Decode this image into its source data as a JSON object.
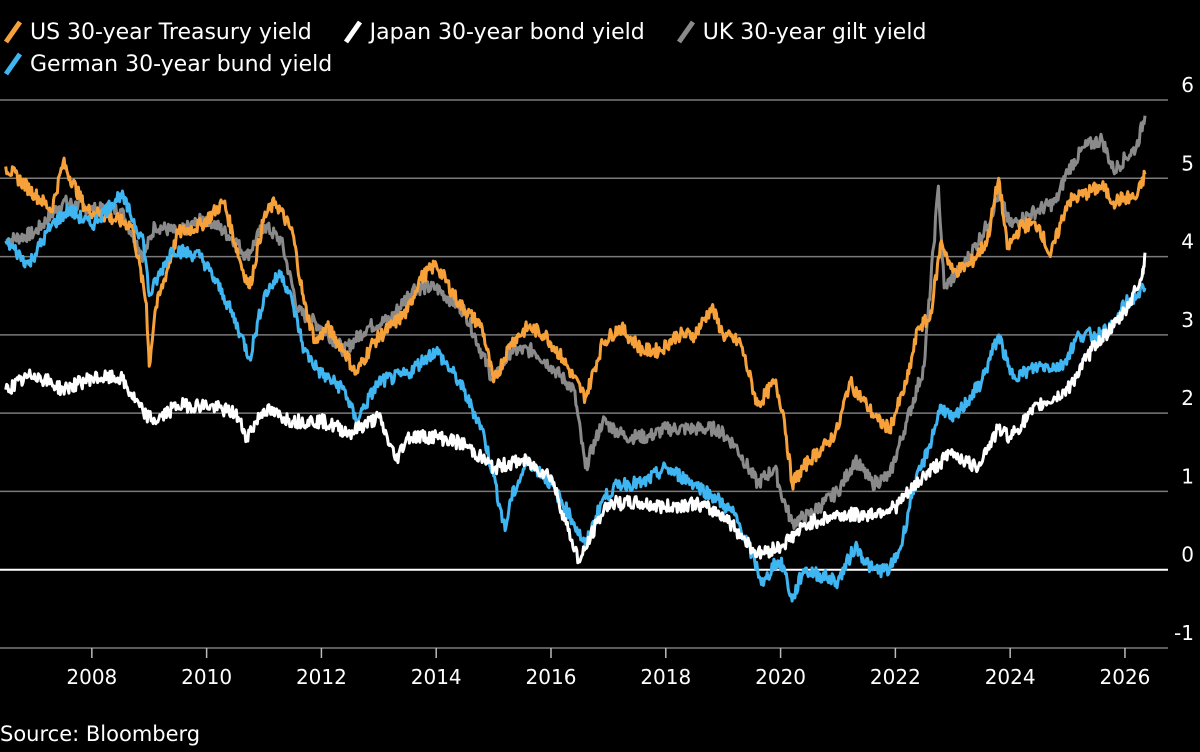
{
  "legend": [
    {
      "label": "US 30-year Treasury yield",
      "color": "#f7a13b"
    },
    {
      "label": "Japan 30-year bond yield",
      "color": "#ffffff"
    },
    {
      "label": "UK 30-year gilt yield",
      "color": "#8a8a8a"
    },
    {
      "label": "German 30-year bund yield",
      "color": "#3fb6f2"
    }
  ],
  "source": "Source: Bloomberg",
  "chart_data": {
    "type": "line",
    "title": "",
    "xlabel": "",
    "ylabel": "",
    "xlim": [
      2006.4,
      2026.75
    ],
    "ylim": [
      -1,
      6
    ],
    "x_ticks": [
      2008,
      2010,
      2012,
      2014,
      2016,
      2018,
      2020,
      2022,
      2024,
      2026
    ],
    "y_ticks": [
      -1,
      0,
      1,
      2,
      3,
      4,
      5,
      6
    ],
    "grid": true,
    "legend_position": "top-left",
    "series": [
      {
        "name": "US 30-year Treasury yield",
        "color": "#f7a13b",
        "points": [
          [
            2006.5,
            5.15
          ],
          [
            2007.0,
            4.8
          ],
          [
            2007.3,
            4.6
          ],
          [
            2007.5,
            5.2
          ],
          [
            2007.9,
            4.6
          ],
          [
            2008.3,
            4.5
          ],
          [
            2008.7,
            4.4
          ],
          [
            2008.95,
            3.4
          ],
          [
            2009.0,
            2.6
          ],
          [
            2009.1,
            3.3
          ],
          [
            2009.5,
            4.3
          ],
          [
            2009.9,
            4.4
          ],
          [
            2010.3,
            4.7
          ],
          [
            2010.6,
            3.9
          ],
          [
            2010.75,
            3.6
          ],
          [
            2011.0,
            4.5
          ],
          [
            2011.2,
            4.7
          ],
          [
            2011.5,
            4.3
          ],
          [
            2011.7,
            3.4
          ],
          [
            2011.9,
            2.9
          ],
          [
            2012.1,
            3.1
          ],
          [
            2012.4,
            2.8
          ],
          [
            2012.6,
            2.5
          ],
          [
            2012.9,
            2.9
          ],
          [
            2013.2,
            3.1
          ],
          [
            2013.5,
            3.3
          ],
          [
            2013.7,
            3.7
          ],
          [
            2014.0,
            3.9
          ],
          [
            2014.4,
            3.4
          ],
          [
            2014.8,
            3.1
          ],
          [
            2015.0,
            2.4
          ],
          [
            2015.3,
            2.9
          ],
          [
            2015.6,
            3.1
          ],
          [
            2015.9,
            3.0
          ],
          [
            2016.2,
            2.7
          ],
          [
            2016.6,
            2.2
          ],
          [
            2016.9,
            2.9
          ],
          [
            2017.2,
            3.1
          ],
          [
            2017.6,
            2.8
          ],
          [
            2017.9,
            2.8
          ],
          [
            2018.2,
            3.0
          ],
          [
            2018.5,
            3.0
          ],
          [
            2018.8,
            3.35
          ],
          [
            2019.0,
            3.0
          ],
          [
            2019.3,
            2.9
          ],
          [
            2019.6,
            2.1
          ],
          [
            2019.9,
            2.4
          ],
          [
            2020.05,
            2.0
          ],
          [
            2020.2,
            1.1
          ],
          [
            2020.5,
            1.4
          ],
          [
            2020.8,
            1.6
          ],
          [
            2021.0,
            1.8
          ],
          [
            2021.2,
            2.4
          ],
          [
            2021.5,
            2.1
          ],
          [
            2021.7,
            1.9
          ],
          [
            2021.9,
            1.8
          ],
          [
            2022.0,
            2.0
          ],
          [
            2022.2,
            2.4
          ],
          [
            2022.4,
            3.1
          ],
          [
            2022.6,
            3.2
          ],
          [
            2022.8,
            4.2
          ],
          [
            2022.9,
            4.0
          ],
          [
            2023.0,
            3.8
          ],
          [
            2023.3,
            3.9
          ],
          [
            2023.6,
            4.2
          ],
          [
            2023.8,
            5.0
          ],
          [
            2023.95,
            4.1
          ],
          [
            2024.2,
            4.4
          ],
          [
            2024.5,
            4.4
          ],
          [
            2024.7,
            4.0
          ],
          [
            2025.0,
            4.7
          ],
          [
            2025.3,
            4.8
          ],
          [
            2025.6,
            4.9
          ],
          [
            2025.8,
            4.7
          ],
          [
            2026.0,
            4.75
          ],
          [
            2026.2,
            4.75
          ],
          [
            2026.35,
            5.05
          ]
        ]
      },
      {
        "name": "Japan 30-year bond yield",
        "color": "#ffffff",
        "points": [
          [
            2006.5,
            2.3
          ],
          [
            2007.0,
            2.5
          ],
          [
            2007.5,
            2.3
          ],
          [
            2008.0,
            2.45
          ],
          [
            2008.5,
            2.45
          ],
          [
            2008.9,
            2.0
          ],
          [
            2009.1,
            1.9
          ],
          [
            2009.5,
            2.1
          ],
          [
            2010.0,
            2.1
          ],
          [
            2010.5,
            2.0
          ],
          [
            2010.7,
            1.7
          ],
          [
            2011.0,
            2.05
          ],
          [
            2011.5,
            1.9
          ],
          [
            2012.0,
            1.9
          ],
          [
            2012.5,
            1.75
          ],
          [
            2013.0,
            1.95
          ],
          [
            2013.3,
            1.4
          ],
          [
            2013.5,
            1.7
          ],
          [
            2014.0,
            1.7
          ],
          [
            2014.5,
            1.6
          ],
          [
            2015.0,
            1.3
          ],
          [
            2015.5,
            1.4
          ],
          [
            2016.0,
            1.2
          ],
          [
            2016.3,
            0.5
          ],
          [
            2016.5,
            0.1
          ],
          [
            2016.8,
            0.6
          ],
          [
            2017.0,
            0.85
          ],
          [
            2017.5,
            0.85
          ],
          [
            2018.0,
            0.8
          ],
          [
            2018.5,
            0.85
          ],
          [
            2019.0,
            0.7
          ],
          [
            2019.6,
            0.2
          ],
          [
            2020.0,
            0.3
          ],
          [
            2020.5,
            0.6
          ],
          [
            2021.0,
            0.7
          ],
          [
            2021.5,
            0.7
          ],
          [
            2022.0,
            0.8
          ],
          [
            2022.5,
            1.2
          ],
          [
            2023.0,
            1.5
          ],
          [
            2023.4,
            1.3
          ],
          [
            2023.8,
            1.8
          ],
          [
            2024.0,
            1.7
          ],
          [
            2024.5,
            2.1
          ],
          [
            2024.8,
            2.2
          ],
          [
            2025.0,
            2.3
          ],
          [
            2025.5,
            2.9
          ],
          [
            2025.8,
            3.1
          ],
          [
            2026.0,
            3.3
          ],
          [
            2026.3,
            3.75
          ],
          [
            2026.35,
            4.05
          ]
        ]
      },
      {
        "name": "UK 30-year gilt yield",
        "color": "#8a8a8a",
        "points": [
          [
            2006.5,
            4.2
          ],
          [
            2007.0,
            4.3
          ],
          [
            2007.5,
            4.7
          ],
          [
            2008.0,
            4.6
          ],
          [
            2008.5,
            4.6
          ],
          [
            2008.9,
            4.0
          ],
          [
            2009.1,
            4.4
          ],
          [
            2009.5,
            4.3
          ],
          [
            2010.0,
            4.5
          ],
          [
            2010.5,
            4.2
          ],
          [
            2010.7,
            4.0
          ],
          [
            2011.0,
            4.4
          ],
          [
            2011.3,
            4.2
          ],
          [
            2011.6,
            3.3
          ],
          [
            2012.0,
            3.1
          ],
          [
            2012.4,
            2.8
          ],
          [
            2012.8,
            3.1
          ],
          [
            2013.2,
            3.2
          ],
          [
            2013.6,
            3.6
          ],
          [
            2014.0,
            3.6
          ],
          [
            2014.5,
            3.3
          ],
          [
            2015.0,
            2.4
          ],
          [
            2015.3,
            2.8
          ],
          [
            2015.7,
            2.8
          ],
          [
            2016.0,
            2.6
          ],
          [
            2016.4,
            2.3
          ],
          [
            2016.6,
            1.3
          ],
          [
            2016.9,
            1.9
          ],
          [
            2017.3,
            1.7
          ],
          [
            2017.7,
            1.7
          ],
          [
            2018.0,
            1.8
          ],
          [
            2018.5,
            1.8
          ],
          [
            2018.9,
            1.8
          ],
          [
            2019.2,
            1.6
          ],
          [
            2019.6,
            1.1
          ],
          [
            2019.9,
            1.3
          ],
          [
            2020.0,
            1.0
          ],
          [
            2020.2,
            0.6
          ],
          [
            2020.5,
            0.7
          ],
          [
            2021.0,
            1.0
          ],
          [
            2021.3,
            1.4
          ],
          [
            2021.6,
            1.1
          ],
          [
            2021.9,
            1.2
          ],
          [
            2022.2,
            1.9
          ],
          [
            2022.5,
            2.6
          ],
          [
            2022.75,
            4.9
          ],
          [
            2022.85,
            3.6
          ],
          [
            2023.2,
            3.9
          ],
          [
            2023.6,
            4.4
          ],
          [
            2023.8,
            4.8
          ],
          [
            2024.0,
            4.4
          ],
          [
            2024.5,
            4.6
          ],
          [
            2024.8,
            4.7
          ],
          [
            2025.0,
            5.1
          ],
          [
            2025.3,
            5.4
          ],
          [
            2025.6,
            5.5
          ],
          [
            2025.8,
            5.1
          ],
          [
            2026.0,
            5.25
          ],
          [
            2026.2,
            5.4
          ],
          [
            2026.35,
            5.8
          ]
        ]
      },
      {
        "name": "German 30-year bund yield",
        "color": "#3fb6f2",
        "points": [
          [
            2006.5,
            4.2
          ],
          [
            2006.9,
            3.9
          ],
          [
            2007.3,
            4.4
          ],
          [
            2007.6,
            4.6
          ],
          [
            2008.0,
            4.4
          ],
          [
            2008.5,
            4.8
          ],
          [
            2008.9,
            4.2
          ],
          [
            2009.0,
            3.5
          ],
          [
            2009.4,
            4.1
          ],
          [
            2009.9,
            4.0
          ],
          [
            2010.3,
            3.5
          ],
          [
            2010.6,
            3.0
          ],
          [
            2010.75,
            2.7
          ],
          [
            2011.0,
            3.5
          ],
          [
            2011.3,
            3.8
          ],
          [
            2011.5,
            3.4
          ],
          [
            2011.7,
            2.8
          ],
          [
            2012.0,
            2.5
          ],
          [
            2012.4,
            2.3
          ],
          [
            2012.6,
            1.9
          ],
          [
            2013.0,
            2.4
          ],
          [
            2013.5,
            2.5
          ],
          [
            2013.8,
            2.7
          ],
          [
            2014.0,
            2.8
          ],
          [
            2014.4,
            2.4
          ],
          [
            2014.8,
            1.8
          ],
          [
            2015.0,
            1.2
          ],
          [
            2015.2,
            0.5
          ],
          [
            2015.3,
            0.9
          ],
          [
            2015.6,
            1.4
          ],
          [
            2016.0,
            1.1
          ],
          [
            2016.4,
            0.6
          ],
          [
            2016.6,
            0.3
          ],
          [
            2016.9,
            0.9
          ],
          [
            2017.2,
            1.1
          ],
          [
            2017.6,
            1.1
          ],
          [
            2018.0,
            1.3
          ],
          [
            2018.5,
            1.1
          ],
          [
            2018.9,
            0.9
          ],
          [
            2019.2,
            0.7
          ],
          [
            2019.5,
            0.2
          ],
          [
            2019.7,
            -0.2
          ],
          [
            2019.9,
            0.1
          ],
          [
            2020.05,
            0.05
          ],
          [
            2020.2,
            -0.4
          ],
          [
            2020.4,
            0.0
          ],
          [
            2020.8,
            -0.1
          ],
          [
            2021.0,
            -0.15
          ],
          [
            2021.3,
            0.3
          ],
          [
            2021.6,
            0.0
          ],
          [
            2021.9,
            0.0
          ],
          [
            2022.1,
            0.3
          ],
          [
            2022.3,
            1.0
          ],
          [
            2022.6,
            1.6
          ],
          [
            2022.8,
            2.1
          ],
          [
            2023.0,
            1.9
          ],
          [
            2023.5,
            2.4
          ],
          [
            2023.8,
            3.0
          ],
          [
            2024.0,
            2.5
          ],
          [
            2024.2,
            2.5
          ],
          [
            2024.5,
            2.6
          ],
          [
            2024.9,
            2.6
          ],
          [
            2025.2,
            3.0
          ],
          [
            2025.5,
            3.0
          ],
          [
            2025.8,
            3.1
          ],
          [
            2026.0,
            3.4
          ],
          [
            2026.2,
            3.5
          ],
          [
            2026.35,
            3.6
          ]
        ]
      }
    ]
  }
}
